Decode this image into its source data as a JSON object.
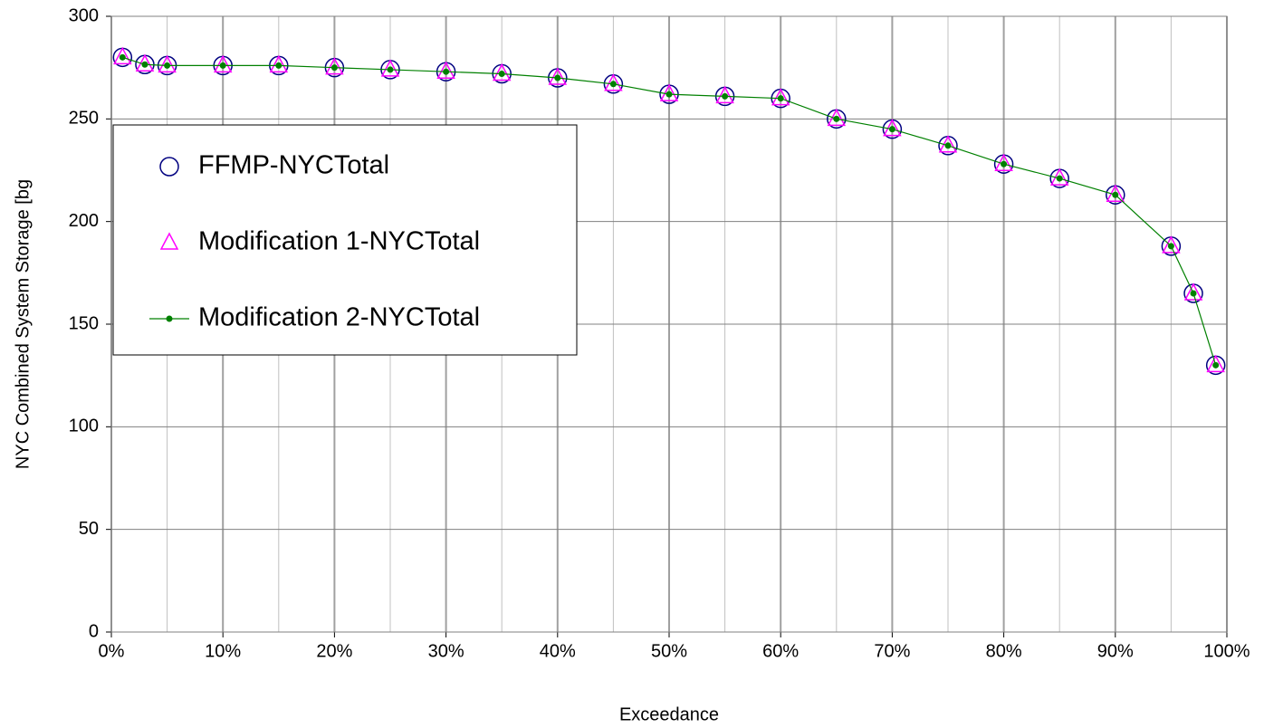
{
  "chart_data": {
    "type": "line",
    "x_label": "Exceedance",
    "y_label": "NYC Combined System Storage [bg",
    "x": [
      1,
      3,
      5,
      10,
      15,
      20,
      25,
      30,
      35,
      40,
      45,
      50,
      55,
      60,
      65,
      70,
      75,
      80,
      85,
      90,
      95,
      97,
      99
    ],
    "series": [
      {
        "name": "FFMP-NYCTotal",
        "color": "#000080",
        "marker": "circle",
        "values": [
          280,
          276.5,
          276,
          276,
          276,
          275,
          274,
          273,
          272,
          270,
          267,
          262,
          261,
          260,
          250,
          245,
          237,
          228,
          221,
          213,
          188,
          165,
          130
        ]
      },
      {
        "name": "Modification 1-NYCTotal",
        "color": "#ff00ff",
        "marker": "triangle",
        "values": [
          280,
          276.5,
          276,
          276,
          276,
          275,
          274,
          273,
          272,
          270,
          267,
          262,
          261,
          260,
          250,
          245,
          237,
          228,
          221,
          213,
          188,
          165,
          130
        ]
      },
      {
        "name": "Modification 2-NYCTotal",
        "color": "#008000",
        "marker": "line-dot",
        "values": [
          280,
          276.5,
          276,
          276,
          276,
          275,
          274,
          273,
          272,
          270,
          267,
          262,
          261,
          260,
          250,
          245,
          237,
          228,
          221,
          213,
          188,
          165,
          130
        ]
      }
    ],
    "xlim": [
      0,
      100
    ],
    "xticks": [
      {
        "value": 0,
        "label": "0%"
      },
      {
        "value": 10,
        "label": "10%"
      },
      {
        "value": 20,
        "label": "20%"
      },
      {
        "value": 30,
        "label": "30%"
      },
      {
        "value": 40,
        "label": "40%"
      },
      {
        "value": 50,
        "label": "50%"
      },
      {
        "value": 60,
        "label": "60%"
      },
      {
        "value": 70,
        "label": "70%"
      },
      {
        "value": 80,
        "label": "80%"
      },
      {
        "value": 90,
        "label": "90%"
      },
      {
        "value": 100,
        "label": "100%"
      }
    ],
    "xminorticks": [
      5,
      15,
      25,
      35,
      45,
      55,
      65,
      75,
      85,
      95
    ],
    "ylim": [
      0,
      300
    ],
    "yticks": [
      0,
      50,
      100,
      150,
      200,
      250,
      300
    ],
    "grid": true,
    "legend": "upper left"
  }
}
